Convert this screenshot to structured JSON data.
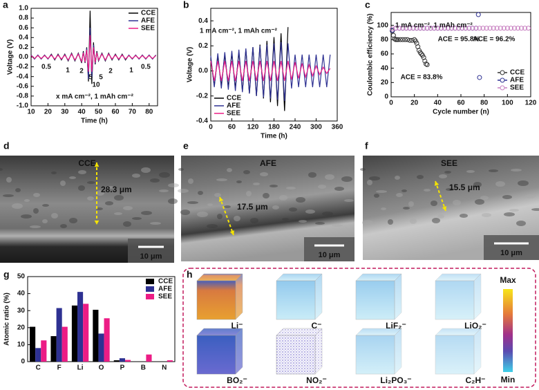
{
  "chart_data": [
    {
      "type": "line",
      "letter": "a",
      "xlabel": "Time (h)",
      "ylabel": "Voltage (V)",
      "x": [
        10,
        12,
        14,
        16,
        18,
        20,
        22,
        24,
        26,
        28,
        30,
        32,
        34,
        36,
        38,
        40,
        41,
        42,
        43,
        44,
        45,
        46,
        47,
        48,
        49,
        50,
        52,
        54,
        56,
        58,
        60,
        62,
        64,
        66,
        68,
        70,
        72,
        74,
        76,
        78,
        80,
        82,
        84
      ],
      "series": [
        {
          "name": "CCE",
          "color": "#000000",
          "values": [
            0.04,
            -0.04,
            0.04,
            -0.04,
            0.04,
            -0.04,
            0.06,
            -0.06,
            0.06,
            -0.06,
            0.06,
            -0.08,
            0.08,
            -0.08,
            0.08,
            -0.12,
            0.12,
            -0.12,
            0.2,
            -0.5,
            0.95,
            -0.55,
            0.3,
            -0.15,
            0.12,
            -0.08,
            0.08,
            -0.08,
            0.08,
            -0.06,
            0.06,
            -0.06,
            0.06,
            -0.06,
            0.04,
            -0.04,
            0.04,
            -0.04,
            0.04,
            -0.04,
            0.04,
            -0.04,
            0.04
          ]
        },
        {
          "name": "AFE",
          "color": "#2e3192",
          "values": [
            0.04,
            -0.04,
            0.04,
            -0.04,
            0.04,
            -0.04,
            0.05,
            -0.05,
            0.05,
            -0.05,
            0.05,
            -0.07,
            0.07,
            -0.07,
            0.07,
            -0.1,
            0.1,
            -0.11,
            0.18,
            -0.45,
            0.6,
            -0.45,
            0.25,
            -0.13,
            0.1,
            -0.07,
            0.07,
            -0.07,
            0.07,
            -0.05,
            0.05,
            -0.05,
            0.05,
            -0.05,
            0.04,
            -0.04,
            0.04,
            -0.04,
            0.04,
            -0.04,
            0.04,
            -0.04,
            0.04
          ]
        },
        {
          "name": "SEE",
          "color": "#ec1c85",
          "values": [
            0.03,
            -0.03,
            0.03,
            -0.03,
            0.03,
            -0.03,
            0.04,
            -0.04,
            0.04,
            -0.04,
            0.04,
            -0.06,
            0.06,
            -0.06,
            0.06,
            -0.09,
            0.09,
            -0.1,
            0.15,
            -0.3,
            0.45,
            -0.3,
            0.2,
            -0.11,
            0.09,
            -0.06,
            0.06,
            -0.06,
            0.06,
            -0.04,
            0.04,
            -0.04,
            0.04,
            -0.04,
            0.03,
            -0.03,
            0.03,
            -0.03,
            0.03,
            -0.03,
            0.03,
            -0.03,
            0.03
          ]
        }
      ],
      "xlim": [
        10,
        85
      ],
      "xticks": [
        10,
        20,
        30,
        40,
        50,
        60,
        70,
        80
      ],
      "ylim": [
        -1,
        1
      ],
      "yticks": [
        {
          "value": -1,
          "label": "-1.0"
        },
        -0.8,
        -0.6,
        -0.4,
        -0.2,
        {
          "value": 0,
          "label": "0.0"
        },
        0.2,
        0.4,
        0.6,
        0.8,
        {
          "value": 1,
          "label": "1.0"
        }
      ],
      "legend": "upper right",
      "annotations": [
        "0.5",
        "1",
        "2",
        "5",
        "10",
        "5",
        "2",
        "1",
        "0.5",
        "x mA cm⁻², 1 mAh cm⁻²"
      ]
    },
    {
      "type": "line",
      "letter": "b",
      "xlabel": "Time (h)",
      "ylabel": "Voltage (V)",
      "x": [
        0,
        10,
        20,
        30,
        40,
        50,
        60,
        70,
        80,
        90,
        100,
        110,
        120,
        130,
        140,
        150,
        160,
        170,
        180,
        190,
        200,
        210,
        220,
        230,
        240,
        250,
        260,
        270,
        280,
        290,
        300,
        310,
        320,
        330,
        340
      ],
      "series": [
        {
          "name": "CCE",
          "color": "#000000",
          "values": [
            0.1,
            -0.12,
            0.12,
            -0.12,
            0.13,
            -0.13,
            0.14,
            -0.14,
            0.15,
            -0.16,
            0.17,
            -0.18,
            0.19,
            -0.2,
            0.21,
            -0.22,
            0.24,
            -0.25,
            0.27,
            -0.28,
            0.3,
            -0.32,
            0.35,
            null,
            null,
            null,
            null,
            null,
            null,
            null,
            null,
            null,
            null,
            null,
            null
          ]
        },
        {
          "name": "AFE",
          "color": "#2e3192",
          "values": [
            0.12,
            -0.13,
            0.14,
            -0.14,
            0.15,
            -0.15,
            0.16,
            -0.16,
            0.17,
            -0.17,
            0.18,
            -0.18,
            0.19,
            -0.2,
            0.2,
            -0.21,
            0.21,
            -0.22,
            0.22,
            -0.23,
            0.23,
            -0.24,
            0.22,
            -0.14,
            0.13,
            -0.13,
            0.13,
            -0.13,
            0.13,
            -0.13,
            0.13,
            -0.13,
            0.13,
            -0.13,
            0.13
          ]
        },
        {
          "name": "SEE",
          "color": "#ec1c85",
          "values": [
            0.08,
            -0.08,
            0.08,
            -0.08,
            0.08,
            -0.08,
            0.08,
            -0.08,
            0.08,
            -0.08,
            0.08,
            -0.08,
            0.08,
            -0.08,
            0.08,
            -0.08,
            0.08,
            -0.08,
            0.08,
            -0.08,
            0.08,
            -0.08,
            0.08,
            -0.07,
            0.07,
            -0.06,
            0.06,
            -0.05,
            0.05,
            -0.04,
            0.04,
            -0.03,
            0.03,
            -0.02,
            0.02
          ]
        }
      ],
      "xlim": [
        0,
        360
      ],
      "xticks": [
        0,
        60,
        120,
        180,
        240,
        300,
        360
      ],
      "ylim": [
        -0.4,
        0.5
      ],
      "yticks": [
        -0.4,
        -0.2,
        {
          "value": 0,
          "label": "0.0"
        },
        0.2,
        0.4
      ],
      "legend": "lower left",
      "annotations": [
        "1 mA cm⁻², 1 mAh cm⁻²"
      ]
    },
    {
      "type": "scatter",
      "letter": "c",
      "xlabel": "Cycle number (n)",
      "ylabel": "Coulombic efficiency (%)",
      "series": [
        {
          "name": "CCE",
          "color": "#333333",
          "x": [
            1,
            2,
            3,
            4,
            5,
            6,
            8,
            10,
            12,
            14,
            16,
            18,
            20,
            21,
            22,
            23,
            24,
            25,
            26,
            27,
            28,
            29,
            30,
            31
          ],
          "values": [
            92,
            86,
            81,
            80,
            80,
            80,
            80,
            80,
            80,
            80,
            79,
            79,
            80,
            78,
            75,
            70,
            65,
            62,
            60,
            58,
            55,
            50,
            46,
            45
          ]
        },
        {
          "name": "AFE",
          "color": "#2e3192",
          "x": [
            1,
            4,
            7,
            10,
            13,
            16,
            19,
            22,
            25,
            28,
            31,
            34,
            37,
            40,
            43,
            46,
            49,
            52,
            55,
            58,
            61,
            64,
            67,
            70,
            73,
            75,
            76
          ],
          "values": [
            93,
            96,
            96,
            96,
            96,
            96,
            96,
            96,
            96,
            96,
            96,
            96,
            96,
            96,
            96,
            96,
            96,
            96,
            96,
            96,
            96,
            96,
            96,
            96,
            96,
            115,
            27
          ]
        },
        {
          "name": "SEE",
          "color": "#c77fc0",
          "x": [
            1,
            4,
            7,
            10,
            13,
            16,
            19,
            22,
            25,
            28,
            31,
            34,
            37,
            40,
            43,
            46,
            49,
            52,
            55,
            58,
            61,
            64,
            67,
            70,
            73,
            76,
            79,
            82,
            85,
            88,
            91,
            94,
            97,
            100,
            103,
            106,
            109,
            112,
            115,
            118
          ],
          "values": [
            95,
            96,
            96,
            96,
            96,
            96,
            96,
            96,
            96,
            96,
            96,
            96,
            96,
            96,
            96,
            96,
            96,
            96,
            96,
            96,
            96,
            96,
            96,
            96,
            96,
            96,
            96,
            96,
            96,
            96,
            96,
            96,
            96,
            96,
            96,
            96,
            96,
            96,
            96,
            96
          ]
        }
      ],
      "xlim": [
        0,
        120
      ],
      "xticks": [
        0,
        20,
        40,
        60,
        80,
        100,
        120
      ],
      "ylim": [
        0,
        118
      ],
      "yticks": [
        0,
        20,
        40,
        60,
        80,
        100
      ],
      "legend": "lower right",
      "annotations": [
        "1 mA cm⁻², 1 mAh cm⁻²",
        "ACE = 95.8%",
        "ACE = 96.2%",
        "ACE = 83.8%"
      ]
    },
    {
      "type": "bar",
      "letter": "g",
      "ylabel": "Atomic ratio (%)",
      "categories": [
        "C",
        "F",
        "Li",
        "O",
        "P",
        "B",
        "N"
      ],
      "series": [
        {
          "name": "CCE",
          "color": "#000000",
          "values": [
            20.5,
            15,
            33,
            30.5,
            0.8,
            0,
            0
          ]
        },
        {
          "name": "AFE",
          "color": "#2e3192",
          "values": [
            8,
            31.5,
            41,
            16.5,
            2,
            0,
            0
          ]
        },
        {
          "name": "SEE",
          "color": "#ec1c85",
          "values": [
            12.5,
            20.5,
            34,
            25.5,
            1,
            4.2,
            0.8
          ]
        }
      ],
      "ylim": [
        0,
        50
      ],
      "yticks": [
        0,
        10,
        20,
        30,
        40,
        50
      ],
      "legend": "upper right"
    }
  ],
  "images": [
    {
      "letter": "d",
      "title": "CCE",
      "thickness": "28.3 μm",
      "scale": "10 μm"
    },
    {
      "letter": "e",
      "title": "AFE",
      "thickness": "17.5 μm",
      "scale": "10 μm"
    },
    {
      "letter": "f",
      "title": "SEE",
      "thickness": "15.5 μm",
      "scale": "10 μm"
    }
  ],
  "tof_sims": {
    "letter": "h",
    "species": [
      "Li⁻",
      "C⁻",
      "LiF₂⁻",
      "LiO₂⁻",
      "BO₂⁻",
      "NO₂⁻",
      "Li₂PO₃⁻",
      "C₂H⁻"
    ],
    "colorbar_max": "Max",
    "colorbar_min": "Min"
  }
}
